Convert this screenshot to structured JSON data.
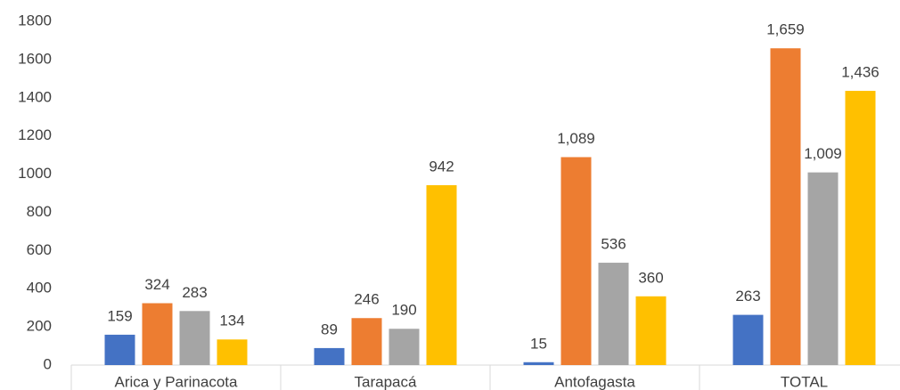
{
  "chart_data": {
    "type": "bar",
    "categories": [
      "Arica y Parinacota",
      "Tarapacá",
      "Antofagasta",
      "TOTAL"
    ],
    "series": [
      {
        "color": "#4472c4",
        "values": [
          159,
          89,
          15,
          263
        ]
      },
      {
        "color": "#ed7d31",
        "values": [
          324,
          246,
          1089,
          1659
        ],
        "value_labels": [
          "324",
          "246",
          "1,089",
          "1,659"
        ]
      },
      {
        "color": "#a5a5a5",
        "values": [
          283,
          190,
          536,
          1009
        ],
        "value_labels": [
          "283",
          "190",
          "536",
          "1,009"
        ]
      },
      {
        "color": "#ffc000",
        "values": [
          134,
          942,
          360,
          1436
        ],
        "value_labels": [
          "134",
          "942",
          "360",
          "1,436"
        ]
      }
    ],
    "ylim": [
      0,
      1800
    ],
    "yticks": [
      0,
      200,
      400,
      600,
      800,
      1000,
      1200,
      1400,
      1600,
      1800
    ],
    "grid": false
  }
}
